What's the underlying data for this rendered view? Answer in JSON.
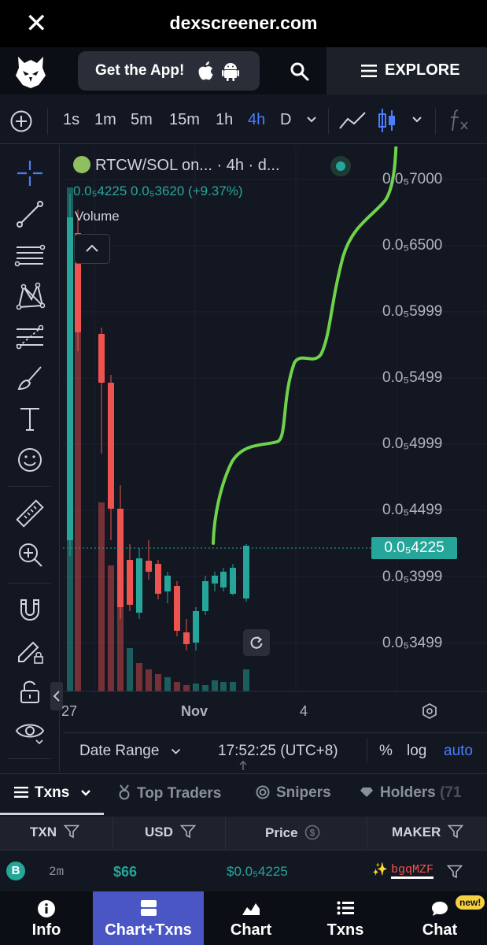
{
  "browser": {
    "close_glyph": "✕",
    "url": "dexscreener.com"
  },
  "header": {
    "get_app_label": "Get the App!",
    "explore_label": "EXPLORE"
  },
  "timeframes": [
    "1s",
    "1m",
    "5m",
    "15m",
    "1h",
    "4h",
    "D"
  ],
  "active_timeframe": "4h",
  "chart": {
    "symbol_title": "RTCW/SOL on... · 4h · d...",
    "ohlc_text": "0.0₅4225  0.0₅3620 (+9.37%)",
    "volume_label": "Volume",
    "price_labels": [
      "0.0₅7000",
      "0.0₅6500",
      "0.0₅5999",
      "0.0₅5499",
      "0.0₅4999",
      "0.0₅4499",
      "0.0₅3999",
      "0.0₅3499"
    ],
    "current_price": "0.0₅4225",
    "x_labels": [
      "27",
      "Nov",
      "4"
    ],
    "date_range_label": "Date Range",
    "time_text": "17:52:25 (UTC+8)",
    "scale_pct": "%",
    "scale_log": "log",
    "scale_auto": "auto",
    "colors": {
      "up": "#26a69a",
      "down": "#ef5350",
      "annotation": "#6fd34a",
      "accent": "#4c7dfe"
    }
  },
  "tabs": {
    "txns": "Txns",
    "top_traders": "Top Traders",
    "snipers": "Snipers",
    "holders": "Holders",
    "holders_count": "(71"
  },
  "table": {
    "headers": {
      "txn": "TXN",
      "usd": "USD",
      "price": "Price",
      "maker": "MAKER"
    },
    "row": {
      "type_badge": "B",
      "age": "2m",
      "usd": "$66",
      "price": "$0.0₅4225",
      "maker": "bgqMZF"
    }
  },
  "bottom_nav": {
    "info": "Info",
    "chart_txns": "Chart+Txns",
    "chart": "Chart",
    "txns": "Txns",
    "chat": "Chat",
    "chat_badge": "new!"
  }
}
